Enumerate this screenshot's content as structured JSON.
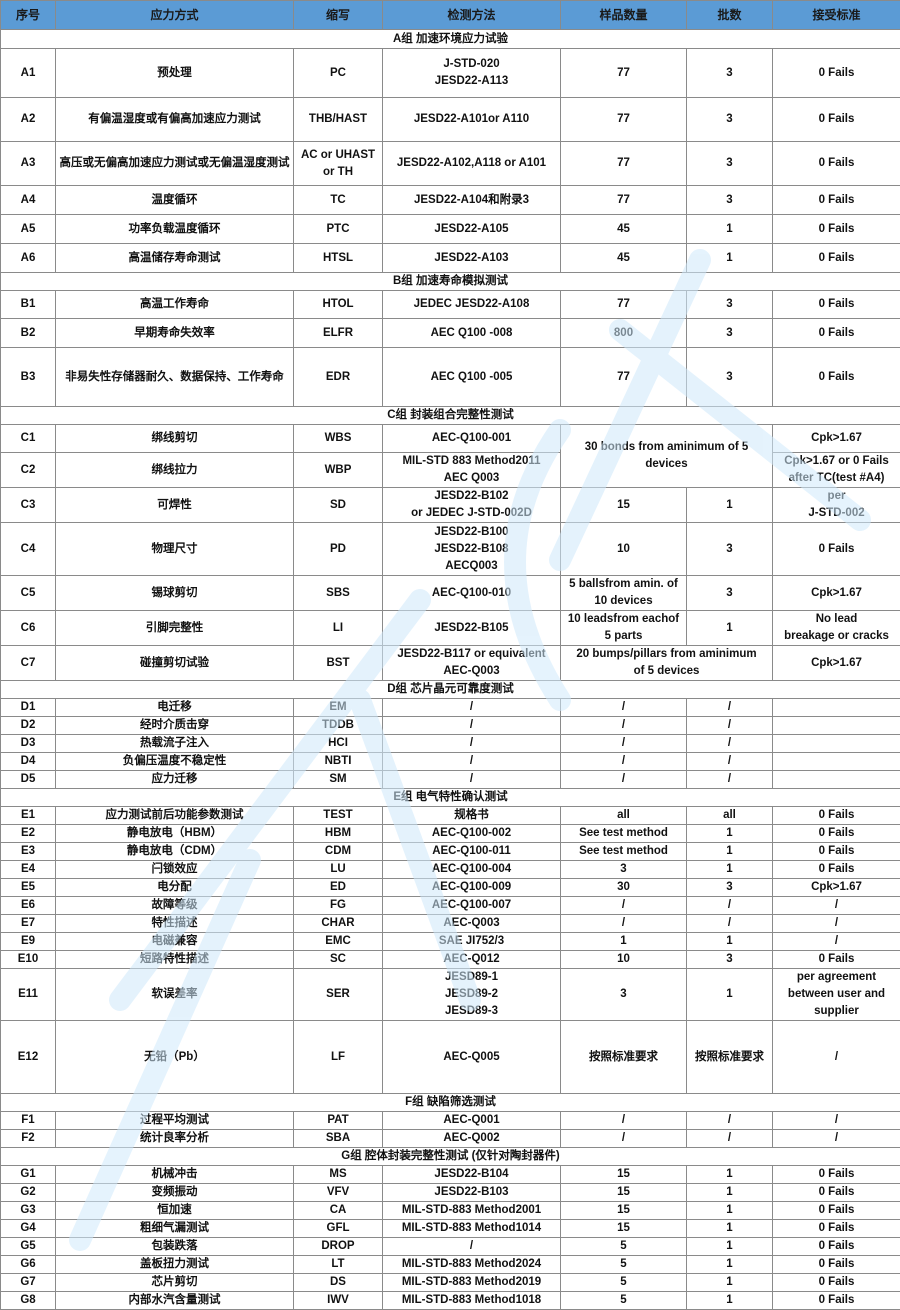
{
  "header": [
    "序号",
    "应力方式",
    "缩写",
    "检测方法",
    "样品数量",
    "批数",
    "接受标准"
  ],
  "groups": [
    {
      "title": "A组 加速环境应力试验",
      "rows": [
        {
          "id": "A1",
          "name": "预处理",
          "abbr": "PC",
          "method": "J-STD-020\nJESD22-A113",
          "samples": "77",
          "lots": "3",
          "criteria": "0 Fails"
        },
        {
          "id": "A2",
          "name": "有偏温湿度或有偏高加速应力测试",
          "abbr": "THB/HAST",
          "method": "JESD22-A101or A110",
          "samples": "77",
          "lots": "3",
          "criteria": "0 Fails"
        },
        {
          "id": "A3",
          "name": "高压或无偏高加速应力测试或无偏温湿度测试",
          "abbr": "AC or UHAST\nor TH",
          "method": "JESD22-A102,A118 or A101",
          "samples": "77",
          "lots": "3",
          "criteria": "0 Fails"
        },
        {
          "id": "A4",
          "name": "温度循环",
          "abbr": "TC",
          "method": "JESD22-A104和附录3",
          "samples": "77",
          "lots": "3",
          "criteria": "0 Fails"
        },
        {
          "id": "A5",
          "name": "功率负载温度循环",
          "abbr": "PTC",
          "method": "JESD22-A105",
          "samples": "45",
          "lots": "1",
          "criteria": "0 Fails"
        },
        {
          "id": "A6",
          "name": "高温储存寿命测试",
          "abbr": "HTSL",
          "method": "JESD22-A103",
          "samples": "45",
          "lots": "1",
          "criteria": "0 Fails"
        }
      ]
    },
    {
      "title": "B组 加速寿命模拟测试",
      "rows": [
        {
          "id": "B1",
          "name": "高温工作寿命",
          "abbr": "HTOL",
          "method": "JEDEC JESD22-A108",
          "samples": "77",
          "lots": "3",
          "criteria": "0 Fails"
        },
        {
          "id": "B2",
          "name": "早期寿命失效率",
          "abbr": "ELFR",
          "method": "AEC Q100 -008",
          "samples": "800",
          "lots": "3",
          "criteria": "0 Fails"
        },
        {
          "id": "B3",
          "name": "非易失性存储器耐久、数据保持、工作寿命",
          "abbr": "EDR",
          "method": "AEC Q100 -005",
          "samples": "77",
          "lots": "3",
          "criteria": "0 Fails"
        }
      ]
    },
    {
      "title": "C组 封装组合完整性测试",
      "rows": [
        {
          "id": "C1",
          "name": "绑线剪切",
          "abbr": "WBS",
          "method": "AEC-Q100-001",
          "samples_lots": "30 bonds from aminimum of 5 devices",
          "criteria": "Cpk>1.67"
        },
        {
          "id": "C2",
          "name": "绑线拉力",
          "abbr": "WBP",
          "method": "MIL-STD 883 Method2011\nAEC Q003",
          "criteria": "Cpk>1.67 or 0 Fails\nafter TC(test #A4)"
        },
        {
          "id": "C3",
          "name": "可焊性",
          "abbr": "SD",
          "method": "JESD22-B102\nor JEDEC J-STD-002D",
          "samples": "15",
          "lots": "1",
          "criteria": "per\nJ-STD-002"
        },
        {
          "id": "C4",
          "name": "物理尺寸",
          "abbr": "PD",
          "method": "JESD22-B100\nJESD22-B108\nAECQ003",
          "samples": "10",
          "lots": "3",
          "criteria": "0 Fails"
        },
        {
          "id": "C5",
          "name": "锡球剪切",
          "abbr": "SBS",
          "method": "AEC-Q100-010",
          "samples": "5 ballsfrom amin. of\n10 devices",
          "lots": "3",
          "criteria": "Cpk>1.67"
        },
        {
          "id": "C6",
          "name": "引脚完整性",
          "abbr": "LI",
          "method": "JESD22-B105",
          "samples": "10 leadsfrom eachof\n5 parts",
          "lots": "1",
          "criteria": "No lead\nbreakage or cracks"
        },
        {
          "id": "C7",
          "name": "碰撞剪切试验",
          "abbr": "BST",
          "method": "JESD22-B117 or equivalent\nAEC-Q003",
          "samples_lots": "20 bumps/pillars from aminimum\nof 5 devices",
          "criteria": "Cpk>1.67"
        }
      ]
    },
    {
      "title": "D组 芯片晶元可靠度测试",
      "rows": [
        {
          "id": "D1",
          "name": "电迁移",
          "abbr": "EM",
          "method": "/",
          "samples": "/",
          "lots": "/",
          "criteria": ""
        },
        {
          "id": "D2",
          "name": "经时介质击穿",
          "abbr": "TDDB",
          "method": "/",
          "samples": "/",
          "lots": "/",
          "criteria": ""
        },
        {
          "id": "D3",
          "name": "热载流子注入",
          "abbr": "HCI",
          "method": "/",
          "samples": "/",
          "lots": "/",
          "criteria": ""
        },
        {
          "id": "D4",
          "name": "负偏压温度不稳定性",
          "abbr": "NBTI",
          "method": "/",
          "samples": "/",
          "lots": "/",
          "criteria": ""
        },
        {
          "id": "D5",
          "name": "应力迁移",
          "abbr": "SM",
          "method": "/",
          "samples": "/",
          "lots": "/",
          "criteria": ""
        }
      ]
    },
    {
      "title": "E组 电气特性确认测试",
      "rows": [
        {
          "id": "E1",
          "name": "应力测试前后功能参数测试",
          "abbr": "TEST",
          "method": "规格书",
          "samples": "all",
          "lots": "all",
          "criteria": "0 Fails"
        },
        {
          "id": "E2",
          "name": "静电放电（HBM）",
          "abbr": "HBM",
          "method": "AEC-Q100-002",
          "samples": "See test method",
          "lots": "1",
          "criteria": "0 Fails"
        },
        {
          "id": "E3",
          "name": "静电放电（CDM）",
          "abbr": "CDM",
          "method": "AEC-Q100-011",
          "samples": "See test method",
          "lots": "1",
          "criteria": "0 Fails"
        },
        {
          "id": "E4",
          "name": "闩锁效应",
          "abbr": "LU",
          "method": "AEC-Q100-004",
          "samples": "3",
          "lots": "1",
          "criteria": "0 Fails"
        },
        {
          "id": "E5",
          "name": "电分配",
          "abbr": "ED",
          "method": "AEC-Q100-009",
          "samples": "30",
          "lots": "3",
          "criteria": "Cpk>1.67"
        },
        {
          "id": "E6",
          "name": "故障等级",
          "abbr": "FG",
          "method": "AEC-Q100-007",
          "samples": "/",
          "lots": "/",
          "criteria": "/"
        },
        {
          "id": "E7",
          "name": "特性描述",
          "abbr": "CHAR",
          "method": "AEC-Q003",
          "samples": "/",
          "lots": "/",
          "criteria": "/"
        },
        {
          "id": "E9",
          "name": "电磁兼容",
          "abbr": "EMC",
          "method": "SAE JI752/3",
          "samples": "1",
          "lots": "1",
          "criteria": "/"
        },
        {
          "id": "E10",
          "name": "短路特性描述",
          "abbr": "SC",
          "method": "AEC-Q012",
          "samples": "10",
          "lots": "3",
          "criteria": "0 Fails"
        },
        {
          "id": "E11",
          "name": "软误差率",
          "abbr": "SER",
          "method": "JESD89-1\nJESD89-2\nJESD89-3",
          "samples": "3",
          "lots": "1",
          "criteria": "per agreement\nbetween user and\nsupplier"
        },
        {
          "id": "E12",
          "name": "无铅（Pb）",
          "abbr": "LF",
          "method": "AEC-Q005",
          "samples": "按照标准要求",
          "lots": "按照标准要求",
          "criteria": "/"
        }
      ]
    },
    {
      "title": "F组 缺陷筛选测试",
      "rows": [
        {
          "id": "F1",
          "name": "过程平均测试",
          "abbr": "PAT",
          "method": "AEC-Q001",
          "samples": "/",
          "lots": "/",
          "criteria": "/"
        },
        {
          "id": "F2",
          "name": "统计良率分析",
          "abbr": "SBA",
          "method": "AEC-Q002",
          "samples": "/",
          "lots": "/",
          "criteria": "/"
        }
      ]
    },
    {
      "title": "G组 腔体封装完整性测试 (仅针对陶封器件)",
      "rows": [
        {
          "id": "G1",
          "name": "机械冲击",
          "abbr": "MS",
          "method": "JESD22-B104",
          "samples": "15",
          "lots": "1",
          "criteria": "0 Fails"
        },
        {
          "id": "G2",
          "name": "变频振动",
          "abbr": "VFV",
          "method": "JESD22-B103",
          "samples": "15",
          "lots": "1",
          "criteria": "0 Fails"
        },
        {
          "id": "G3",
          "name": "恒加速",
          "abbr": "CA",
          "method": "MIL-STD-883 Method2001",
          "samples": "15",
          "lots": "1",
          "criteria": "0 Fails"
        },
        {
          "id": "G4",
          "name": "粗细气漏测试",
          "abbr": "GFL",
          "method": "MIL-STD-883 Method1014",
          "samples": "15",
          "lots": "1",
          "criteria": "0 Fails"
        },
        {
          "id": "G5",
          "name": "包装跌落",
          "abbr": "DROP",
          "method": "/",
          "samples": "5",
          "lots": "1",
          "criteria": "0 Fails"
        },
        {
          "id": "G6",
          "name": "盖板扭力测试",
          "abbr": "LT",
          "method": "MIL-STD-883 Method2024",
          "samples": "5",
          "lots": "1",
          "criteria": "0 Fails"
        },
        {
          "id": "G7",
          "name": "芯片剪切",
          "abbr": "DS",
          "method": "MIL-STD-883 Method2019",
          "samples": "5",
          "lots": "1",
          "criteria": "0 Fails"
        },
        {
          "id": "G8",
          "name": "内部水汽含量测试",
          "abbr": "IWV",
          "method": "MIL-STD-883 Method1018",
          "samples": "5",
          "lots": "1",
          "criteria": "0 Fails"
        }
      ]
    }
  ],
  "colors": {
    "header_bg": "#5b9bd5",
    "border": "#8a8a8a",
    "watermark": "#cfe9fb"
  }
}
